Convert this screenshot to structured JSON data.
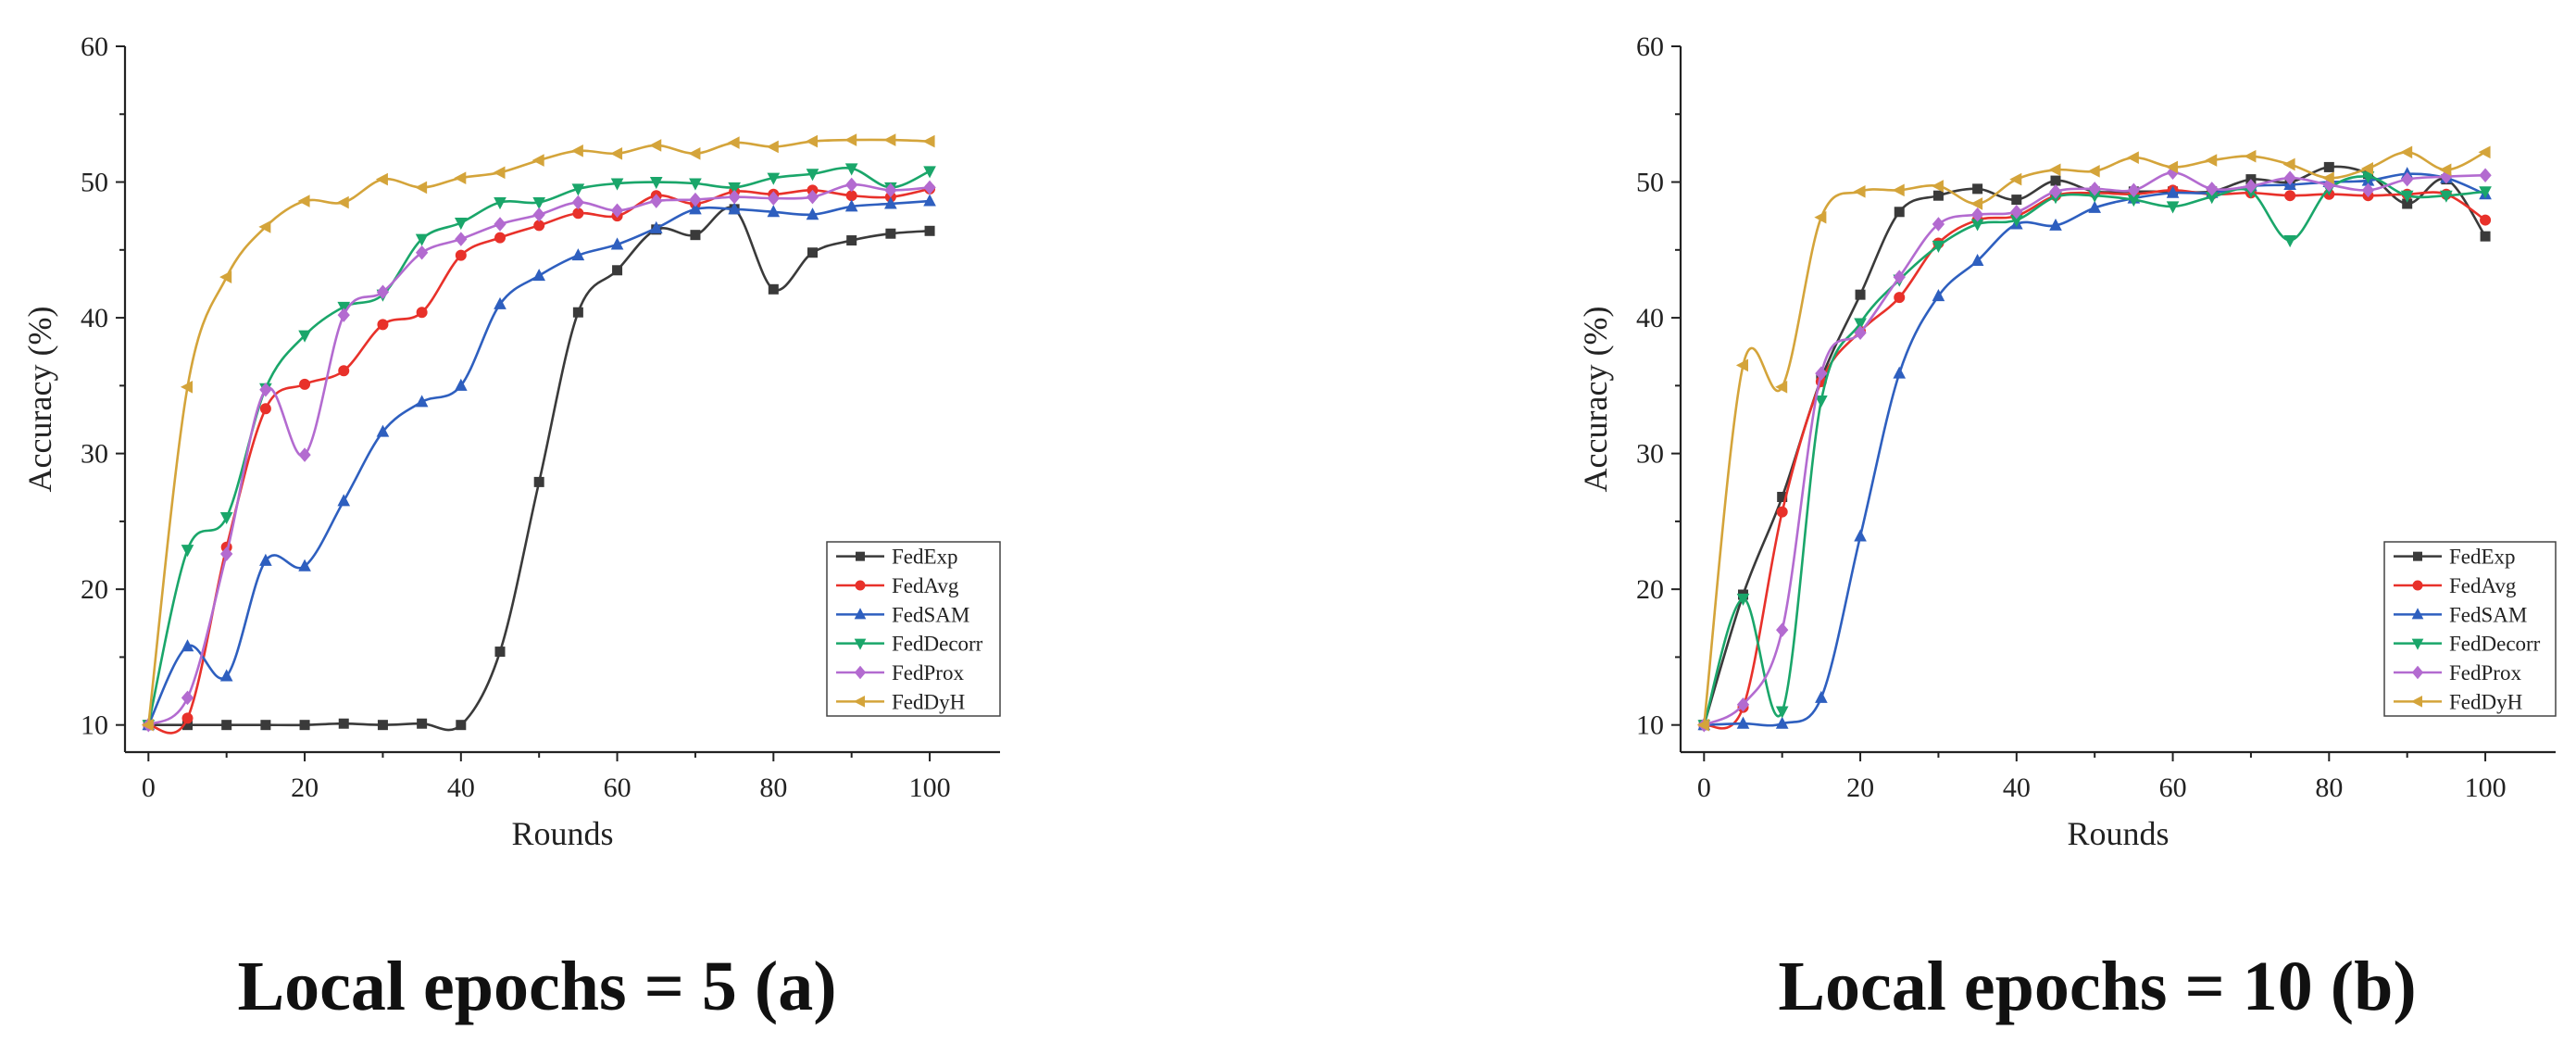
{
  "chart_data": [
    {
      "type": "line",
      "caption": "Local epochs = 5 (a)",
      "xlabel": "Rounds",
      "ylabel": "Accuracy (%)",
      "xlim": [
        -3,
        109
      ],
      "ylim": [
        8,
        60
      ],
      "xticks": [
        0,
        20,
        40,
        60,
        80,
        100
      ],
      "yticks": [
        10,
        20,
        30,
        40,
        50,
        60
      ],
      "x": [
        0,
        5,
        10,
        15,
        20,
        25,
        30,
        35,
        40,
        45,
        50,
        55,
        60,
        65,
        70,
        75,
        80,
        85,
        90,
        95,
        100
      ],
      "legend_position": "bottom-right",
      "series": [
        {
          "name": "FedExp",
          "color": "#3a3a3a",
          "marker": "square",
          "values": [
            10.0,
            10.0,
            10.0,
            10.0,
            10.0,
            10.1,
            10.0,
            10.1,
            10.0,
            15.4,
            27.9,
            40.4,
            43.5,
            46.5,
            46.1,
            48.0,
            42.1,
            44.8,
            45.7,
            46.2,
            46.4
          ]
        },
        {
          "name": "FedAvg",
          "color": "#e8312a",
          "marker": "circle",
          "values": [
            10.0,
            10.5,
            23.1,
            33.3,
            35.1,
            36.1,
            39.5,
            40.4,
            44.6,
            45.9,
            46.8,
            47.7,
            47.5,
            49.0,
            48.4,
            49.3,
            49.1,
            49.4,
            49.0,
            48.9,
            49.5
          ]
        },
        {
          "name": "FedSAM",
          "color": "#2e5fbf",
          "marker": "triangle-up",
          "values": [
            10.0,
            15.8,
            13.6,
            22.1,
            21.7,
            26.5,
            31.6,
            33.8,
            35.0,
            41.0,
            43.1,
            44.6,
            45.4,
            46.6,
            48.0,
            48.0,
            47.8,
            47.6,
            48.2,
            48.4,
            48.6
          ]
        },
        {
          "name": "FedDecorr",
          "color": "#1aa66a",
          "marker": "triangle-down",
          "values": [
            10.0,
            22.9,
            25.3,
            34.8,
            38.7,
            40.8,
            41.7,
            45.8,
            47.0,
            48.5,
            48.5,
            49.5,
            49.9,
            50.0,
            49.9,
            49.6,
            50.3,
            50.6,
            51.0,
            49.6,
            50.8
          ]
        },
        {
          "name": "FedProx",
          "color": "#b36bd0",
          "marker": "diamond",
          "values": [
            10.0,
            12.0,
            22.6,
            34.7,
            29.9,
            40.2,
            41.9,
            44.8,
            45.8,
            46.9,
            47.6,
            48.5,
            47.9,
            48.6,
            48.7,
            48.9,
            48.8,
            48.9,
            49.8,
            49.4,
            49.6
          ]
        },
        {
          "name": "FedDyH",
          "color": "#d4a43a",
          "marker": "triangle-left",
          "values": [
            10.0,
            34.9,
            43.0,
            46.7,
            48.6,
            48.5,
            50.2,
            49.6,
            50.3,
            50.7,
            51.6,
            52.3,
            52.1,
            52.7,
            52.1,
            52.9,
            52.6,
            53.0,
            53.1,
            53.1,
            53.0
          ]
        }
      ]
    },
    {
      "type": "line",
      "caption": "Local epochs = 10 (b)",
      "xlabel": "Rounds",
      "ylabel": "Accuracy (%)",
      "xlim": [
        -3,
        109
      ],
      "ylim": [
        8,
        60
      ],
      "xticks": [
        0,
        20,
        40,
        60,
        80,
        100
      ],
      "yticks": [
        10,
        20,
        30,
        40,
        50,
        60
      ],
      "x": [
        0,
        5,
        10,
        15,
        20,
        25,
        30,
        35,
        40,
        45,
        50,
        55,
        60,
        65,
        70,
        75,
        80,
        85,
        90,
        95,
        100
      ],
      "legend_position": "bottom-right",
      "series": [
        {
          "name": "FedExp",
          "color": "#3a3a3a",
          "marker": "square",
          "values": [
            10.0,
            19.6,
            26.8,
            35.5,
            41.7,
            47.8,
            49.0,
            49.5,
            48.7,
            50.1,
            49.3,
            49.3,
            49.3,
            49.3,
            50.2,
            50.0,
            51.1,
            50.6,
            48.4,
            50.2,
            46.0
          ]
        },
        {
          "name": "FedAvg",
          "color": "#e8312a",
          "marker": "circle",
          "values": [
            10.0,
            11.3,
            25.7,
            35.3,
            39.0,
            41.5,
            45.5,
            47.2,
            47.5,
            49.0,
            49.2,
            49.1,
            49.4,
            49.1,
            49.2,
            49.0,
            49.1,
            49.0,
            49.1,
            49.1,
            47.2
          ]
        },
        {
          "name": "FedSAM",
          "color": "#2e5fbf",
          "marker": "triangle-up",
          "values": [
            10.0,
            10.1,
            10.1,
            12.0,
            23.9,
            35.9,
            41.6,
            44.2,
            46.9,
            46.8,
            48.1,
            48.8,
            49.2,
            49.2,
            49.7,
            49.8,
            50.0,
            50.1,
            50.6,
            50.3,
            49.1
          ]
        },
        {
          "name": "FedDecorr",
          "color": "#1aa66a",
          "marker": "triangle-down",
          "values": [
            10.0,
            19.3,
            11.0,
            33.9,
            39.6,
            42.8,
            45.3,
            46.9,
            47.2,
            48.9,
            49.0,
            48.7,
            48.2,
            48.9,
            49.3,
            45.7,
            49.5,
            50.4,
            49.0,
            49.0,
            49.3
          ]
        },
        {
          "name": "FedProx",
          "color": "#b36bd0",
          "marker": "diamond",
          "values": [
            10.0,
            11.5,
            17.0,
            35.9,
            38.9,
            43.0,
            46.9,
            47.6,
            47.8,
            49.3,
            49.5,
            49.4,
            50.7,
            49.5,
            49.7,
            50.3,
            49.8,
            49.4,
            50.2,
            50.4,
            50.5
          ]
        },
        {
          "name": "FedDyH",
          "color": "#d4a43a",
          "marker": "triangle-left",
          "values": [
            10.0,
            36.5,
            34.9,
            47.4,
            49.3,
            49.4,
            49.7,
            48.4,
            50.2,
            50.9,
            50.8,
            51.8,
            51.1,
            51.6,
            51.9,
            51.3,
            50.3,
            51.0,
            52.2,
            50.9,
            52.2
          ]
        }
      ]
    }
  ]
}
